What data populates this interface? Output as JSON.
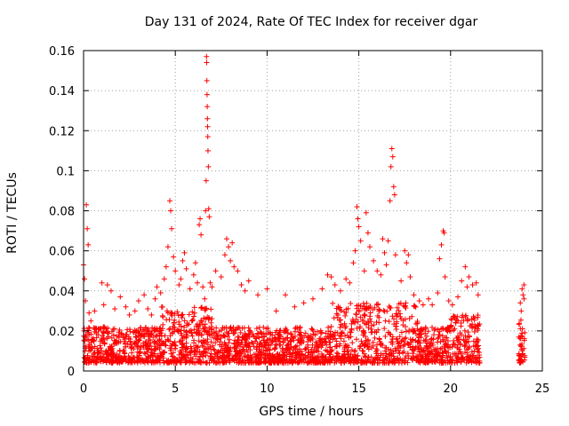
{
  "chart_data": {
    "type": "scatter",
    "title": "Day 131 of 2024, Rate Of TEC Index for receiver dgar",
    "xlabel": "GPS time / hours",
    "ylabel": "ROTI / TECUs",
    "xlim": [
      0,
      25
    ],
    "ylim": [
      0,
      0.16
    ],
    "xticks": [
      0,
      5,
      10,
      15,
      20,
      25
    ],
    "yticks": [
      0,
      0.02,
      0.04,
      0.06,
      0.08,
      0.1,
      0.12,
      0.14,
      0.16
    ],
    "xtick_labels": [
      "0",
      "5",
      "10",
      "15",
      "20",
      "25"
    ],
    "ytick_labels": [
      "0",
      "0.02",
      "0.04",
      "0.06",
      "0.08",
      "0.1",
      "0.12",
      "0.14",
      "0.16"
    ],
    "grid": true,
    "marker": "+",
    "colors": {
      "series": "#ff0000",
      "grid": "#a0a0a0",
      "axis": "#000000"
    },
    "series": [
      {
        "name": "ROTI",
        "points": [
          [
            0.0,
            0.053
          ],
          [
            0.05,
            0.046
          ],
          [
            0.1,
            0.035
          ],
          [
            0.15,
            0.083
          ],
          [
            0.2,
            0.071
          ],
          [
            0.25,
            0.063
          ],
          [
            0.3,
            0.029
          ],
          [
            0.4,
            0.025
          ],
          [
            0.6,
            0.03
          ],
          [
            0.8,
            0.021
          ],
          [
            1.0,
            0.044
          ],
          [
            1.1,
            0.033
          ],
          [
            1.3,
            0.043
          ],
          [
            1.5,
            0.04
          ],
          [
            1.7,
            0.031
          ],
          [
            2.0,
            0.037
          ],
          [
            2.3,
            0.032
          ],
          [
            2.5,
            0.028
          ],
          [
            2.8,
            0.03
          ],
          [
            3.0,
            0.035
          ],
          [
            3.3,
            0.038
          ],
          [
            3.5,
            0.031
          ],
          [
            3.7,
            0.028
          ],
          [
            3.9,
            0.036
          ],
          [
            4.0,
            0.042
          ],
          [
            4.2,
            0.039
          ],
          [
            4.4,
            0.046
          ],
          [
            4.5,
            0.052
          ],
          [
            4.6,
            0.062
          ],
          [
            4.7,
            0.085
          ],
          [
            4.75,
            0.08
          ],
          [
            4.8,
            0.071
          ],
          [
            4.9,
            0.057
          ],
          [
            5.0,
            0.05
          ],
          [
            5.2,
            0.043
          ],
          [
            5.3,
            0.046
          ],
          [
            5.4,
            0.055
          ],
          [
            5.5,
            0.059
          ],
          [
            5.6,
            0.051
          ],
          [
            5.8,
            0.041
          ],
          [
            6.0,
            0.048
          ],
          [
            6.1,
            0.054
          ],
          [
            6.2,
            0.044
          ],
          [
            6.3,
            0.073
          ],
          [
            6.35,
            0.076
          ],
          [
            6.4,
            0.068
          ],
          [
            6.5,
            0.042
          ],
          [
            6.6,
            0.036
          ],
          [
            6.65,
            0.08
          ],
          [
            6.68,
            0.095
          ],
          [
            6.7,
            0.157
          ],
          [
            6.71,
            0.154
          ],
          [
            6.72,
            0.145
          ],
          [
            6.73,
            0.138
          ],
          [
            6.74,
            0.132
          ],
          [
            6.75,
            0.126
          ],
          [
            6.76,
            0.122
          ],
          [
            6.77,
            0.117
          ],
          [
            6.78,
            0.11
          ],
          [
            6.8,
            0.102
          ],
          [
            6.82,
            0.081
          ],
          [
            6.85,
            0.077
          ],
          [
            6.9,
            0.044
          ],
          [
            7.0,
            0.042
          ],
          [
            7.2,
            0.05
          ],
          [
            7.5,
            0.047
          ],
          [
            7.7,
            0.058
          ],
          [
            7.8,
            0.066
          ],
          [
            7.9,
            0.062
          ],
          [
            8.0,
            0.055
          ],
          [
            8.1,
            0.064
          ],
          [
            8.2,
            0.052
          ],
          [
            8.4,
            0.05
          ],
          [
            8.6,
            0.043
          ],
          [
            8.8,
            0.04
          ],
          [
            9.0,
            0.045
          ],
          [
            9.5,
            0.038
          ],
          [
            10.0,
            0.041
          ],
          [
            10.5,
            0.03
          ],
          [
            11.0,
            0.038
          ],
          [
            11.5,
            0.032
          ],
          [
            12.0,
            0.034
          ],
          [
            12.5,
            0.036
          ],
          [
            13.0,
            0.041
          ],
          [
            13.3,
            0.048
          ],
          [
            13.5,
            0.047
          ],
          [
            13.7,
            0.043
          ],
          [
            14.0,
            0.04
          ],
          [
            14.3,
            0.046
          ],
          [
            14.5,
            0.044
          ],
          [
            14.7,
            0.054
          ],
          [
            14.8,
            0.06
          ],
          [
            14.9,
            0.082
          ],
          [
            14.95,
            0.076
          ],
          [
            15.0,
            0.072
          ],
          [
            15.1,
            0.065
          ],
          [
            15.3,
            0.05
          ],
          [
            15.4,
            0.079
          ],
          [
            15.5,
            0.069
          ],
          [
            15.6,
            0.062
          ],
          [
            15.8,
            0.055
          ],
          [
            16.0,
            0.05
          ],
          [
            16.2,
            0.048
          ],
          [
            16.3,
            0.066
          ],
          [
            16.4,
            0.059
          ],
          [
            16.5,
            0.053
          ],
          [
            16.6,
            0.065
          ],
          [
            16.7,
            0.085
          ],
          [
            16.75,
            0.102
          ],
          [
            16.8,
            0.111
          ],
          [
            16.85,
            0.107
          ],
          [
            16.9,
            0.092
          ],
          [
            16.95,
            0.088
          ],
          [
            17.0,
            0.058
          ],
          [
            17.3,
            0.045
          ],
          [
            17.5,
            0.06
          ],
          [
            17.6,
            0.054
          ],
          [
            17.7,
            0.058
          ],
          [
            17.8,
            0.047
          ],
          [
            18.0,
            0.038
          ],
          [
            18.3,
            0.035
          ],
          [
            18.5,
            0.033
          ],
          [
            18.8,
            0.036
          ],
          [
            19.0,
            0.033
          ],
          [
            19.3,
            0.039
          ],
          [
            19.4,
            0.056
          ],
          [
            19.5,
            0.063
          ],
          [
            19.6,
            0.07
          ],
          [
            19.65,
            0.069
          ],
          [
            19.7,
            0.047
          ],
          [
            19.9,
            0.035
          ],
          [
            20.1,
            0.033
          ],
          [
            20.4,
            0.037
          ],
          [
            20.6,
            0.045
          ],
          [
            20.8,
            0.052
          ],
          [
            20.9,
            0.042
          ],
          [
            21.0,
            0.047
          ],
          [
            21.2,
            0.043
          ],
          [
            21.4,
            0.044
          ],
          [
            21.5,
            0.038
          ],
          [
            23.8,
            0.034
          ],
          [
            23.85,
            0.03
          ],
          [
            23.9,
            0.041
          ],
          [
            23.95,
            0.038
          ],
          [
            24.0,
            0.043
          ],
          [
            24.0,
            0.036
          ]
        ]
      }
    ]
  }
}
